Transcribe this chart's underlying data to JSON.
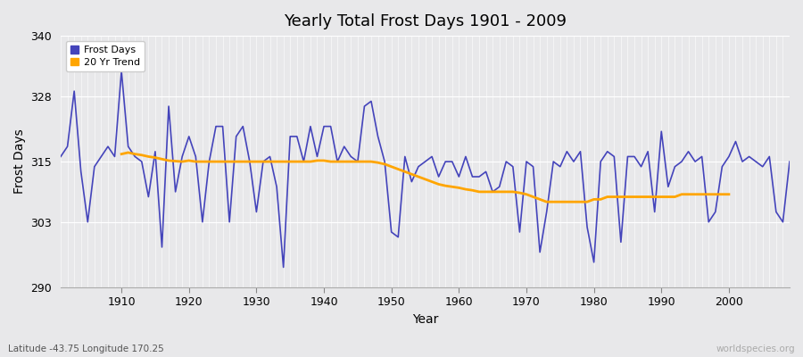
{
  "title": "Yearly Total Frost Days 1901 - 2009",
  "xlabel": "Year",
  "ylabel": "Frost Days",
  "subtitle": "Latitude -43.75 Longitude 170.25",
  "watermark": "worldspecies.org",
  "ylim": [
    290,
    340
  ],
  "yticks": [
    290,
    303,
    315,
    328,
    340
  ],
  "fig_bg_color": "#e8e8ea",
  "plot_bg_color": "#e8e8ea",
  "line_color": "#4444bb",
  "line_alpha": 1.0,
  "trend_color": "#ffa500",
  "legend_frost": "Frost Days",
  "legend_trend": "20 Yr Trend",
  "subtitle_color": "#555555",
  "watermark_color": "#aaaaaa",
  "frost_days": [
    316,
    318,
    329,
    313,
    303,
    314,
    316,
    318,
    316,
    333,
    318,
    316,
    315,
    308,
    317,
    298,
    326,
    309,
    316,
    320,
    316,
    303,
    315,
    322,
    322,
    303,
    320,
    322,
    315,
    305,
    315,
    316,
    310,
    294,
    320,
    320,
    315,
    322,
    316,
    322,
    322,
    315,
    318,
    316,
    315,
    326,
    327,
    320,
    315,
    301,
    300,
    316,
    311,
    314,
    315,
    316,
    312,
    315,
    315,
    312,
    316,
    312,
    312,
    313,
    309,
    310,
    315,
    314,
    301,
    315,
    314,
    297,
    305,
    315,
    314,
    317,
    315,
    317,
    302,
    295,
    315,
    317,
    316,
    299,
    316,
    316,
    314,
    317,
    305,
    321,
    310,
    314,
    315,
    317,
    315,
    316,
    303,
    305,
    314,
    316,
    319,
    315,
    316,
    315,
    314,
    316,
    305,
    303,
    315
  ],
  "trend_20yr_years": [
    1910,
    1911,
    1912,
    1913,
    1914,
    1915,
    1916,
    1917,
    1918,
    1919,
    1920,
    1921,
    1922,
    1923,
    1924,
    1925,
    1926,
    1927,
    1928,
    1929,
    1930,
    1931,
    1932,
    1933,
    1934,
    1935,
    1936,
    1937,
    1938,
    1939,
    1940,
    1941,
    1942,
    1943,
    1944,
    1945,
    1946,
    1947,
    1948,
    1949,
    1950,
    1951,
    1952,
    1953,
    1954,
    1955,
    1956,
    1957,
    1958,
    1959,
    1960,
    1961,
    1962,
    1963,
    1964,
    1965,
    1966,
    1967,
    1968,
    1969,
    1970,
    1971,
    1972,
    1973,
    1974,
    1975,
    1976,
    1977,
    1978,
    1979,
    1980,
    1981,
    1982,
    1983,
    1984,
    1985,
    1986,
    1987,
    1988,
    1989,
    1990,
    1991,
    1992,
    1993,
    1994,
    1995,
    1996,
    1997,
    1998,
    1999,
    2000
  ],
  "trend_20yr_vals": [
    316.5,
    316.8,
    316.5,
    316.3,
    316.0,
    315.8,
    315.5,
    315.2,
    315.1,
    315.0,
    315.2,
    315.0,
    315.0,
    315.0,
    315.0,
    315.0,
    315.0,
    315.0,
    315.0,
    315.0,
    315.0,
    315.0,
    315.0,
    315.0,
    315.0,
    315.0,
    315.0,
    315.0,
    315.0,
    315.2,
    315.2,
    315.0,
    315.0,
    315.0,
    315.0,
    315.0,
    315.0,
    315.0,
    314.8,
    314.5,
    314.0,
    313.5,
    313.0,
    312.5,
    312.0,
    311.5,
    311.0,
    310.5,
    310.2,
    310.0,
    309.8,
    309.5,
    309.3,
    309.0,
    309.0,
    309.0,
    309.0,
    309.0,
    309.0,
    308.8,
    308.5,
    308.0,
    307.5,
    307.0,
    307.0,
    307.0,
    307.0,
    307.0,
    307.0,
    307.0,
    307.5,
    307.5,
    308.0,
    308.0,
    308.0,
    308.0,
    308.0,
    308.0,
    308.0,
    308.0,
    308.0,
    308.0,
    308.0,
    308.5,
    308.5,
    308.5,
    308.5,
    308.5,
    308.5,
    308.5,
    308.5
  ]
}
